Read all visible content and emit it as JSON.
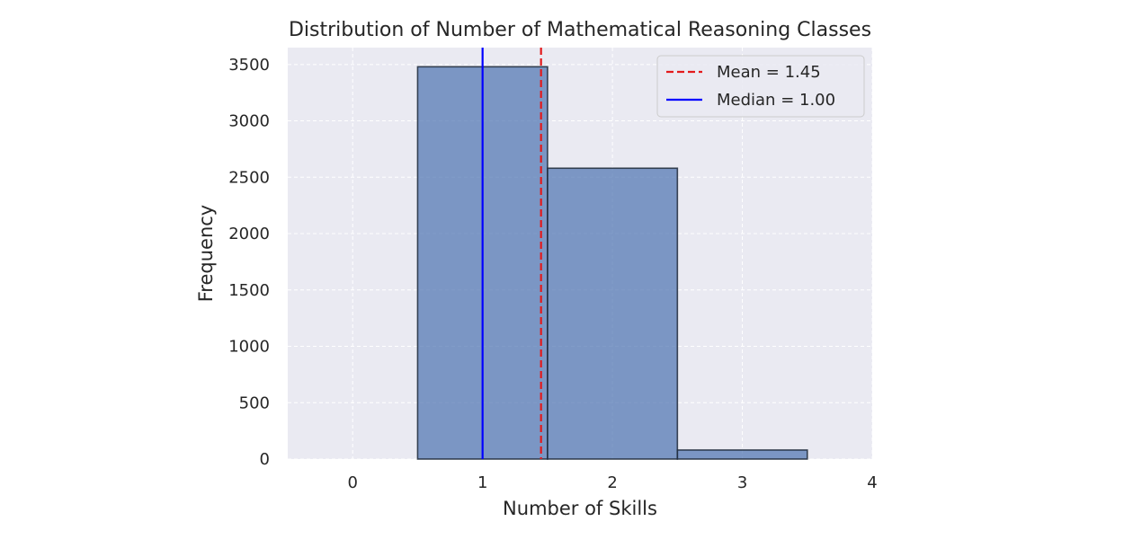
{
  "chart_data": {
    "type": "bar",
    "title": "Distribution of Number of Mathematical Reasoning Classes",
    "xlabel": "Number of Skills",
    "ylabel": "Frequency",
    "xlim": [
      -0.5,
      4.0
    ],
    "ylim": [
      0,
      3650
    ],
    "xticks": [
      0,
      1,
      2,
      3,
      4
    ],
    "yticks": [
      0,
      500,
      1000,
      1500,
      2000,
      2500,
      3000,
      3500
    ],
    "bin_width": 1,
    "bars": [
      {
        "x": 1,
        "value": 3480
      },
      {
        "x": 2,
        "value": 2580
      },
      {
        "x": 3,
        "value": 80
      }
    ],
    "lines": [
      {
        "name": "Mean = 1.45",
        "x": 1.45,
        "style": "dashed",
        "color": "#e31a1c"
      },
      {
        "name": "Median = 1.00",
        "x": 1.0,
        "style": "solid",
        "color": "#0000ff"
      }
    ],
    "bar_color": "#4c72b0",
    "background_color": "#eaeaf2",
    "grid": true,
    "legend_position": "top-right"
  }
}
